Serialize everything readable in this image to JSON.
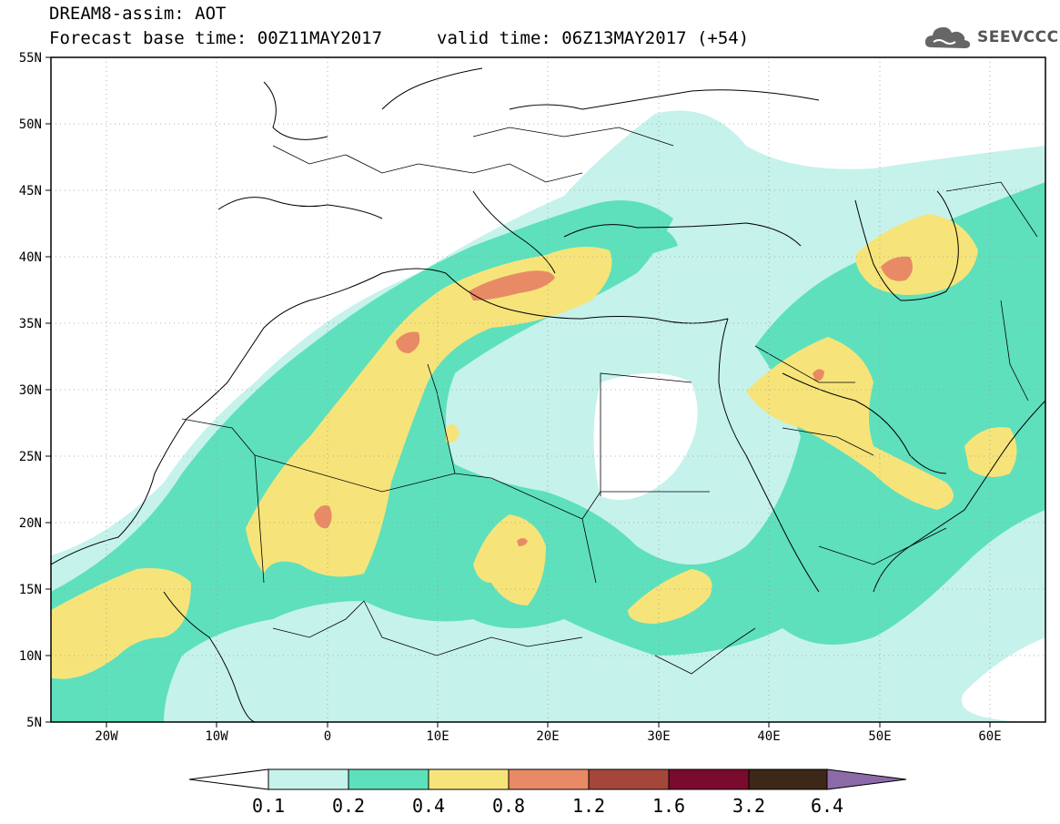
{
  "header": {
    "title": "DREAM8-assim: AOT",
    "base_time": "Forecast base time: 00Z11MAY2017",
    "valid_time": "valid time: 06Z13MAY2017 (+54)",
    "logo": "SEEVCCC"
  },
  "map": {
    "lat_labels": [
      "55N",
      "50N",
      "45N",
      "40N",
      "35N",
      "30N",
      "25N",
      "20N",
      "15N",
      "10N",
      "5N"
    ],
    "lon_labels": [
      "20W",
      "10W",
      "0",
      "10E",
      "20E",
      "30E",
      "40E",
      "50E",
      "60E"
    ]
  },
  "colorbar": {
    "labels": [
      "0.1",
      "0.2",
      "0.4",
      "0.8",
      "1.2",
      "1.6",
      "3.2",
      "6.4"
    ],
    "colors": [
      "#ffffff",
      "#c6f2ec",
      "#5ee0bd",
      "#f6e47a",
      "#e98a66",
      "#a4473a",
      "#7a0a2e",
      "#3d2717",
      "#8c6aa8"
    ]
  },
  "palette": {
    "c1": "#c6f2ec",
    "c2": "#5ee0bd",
    "c3": "#f6e47a",
    "c4": "#e98a66"
  }
}
